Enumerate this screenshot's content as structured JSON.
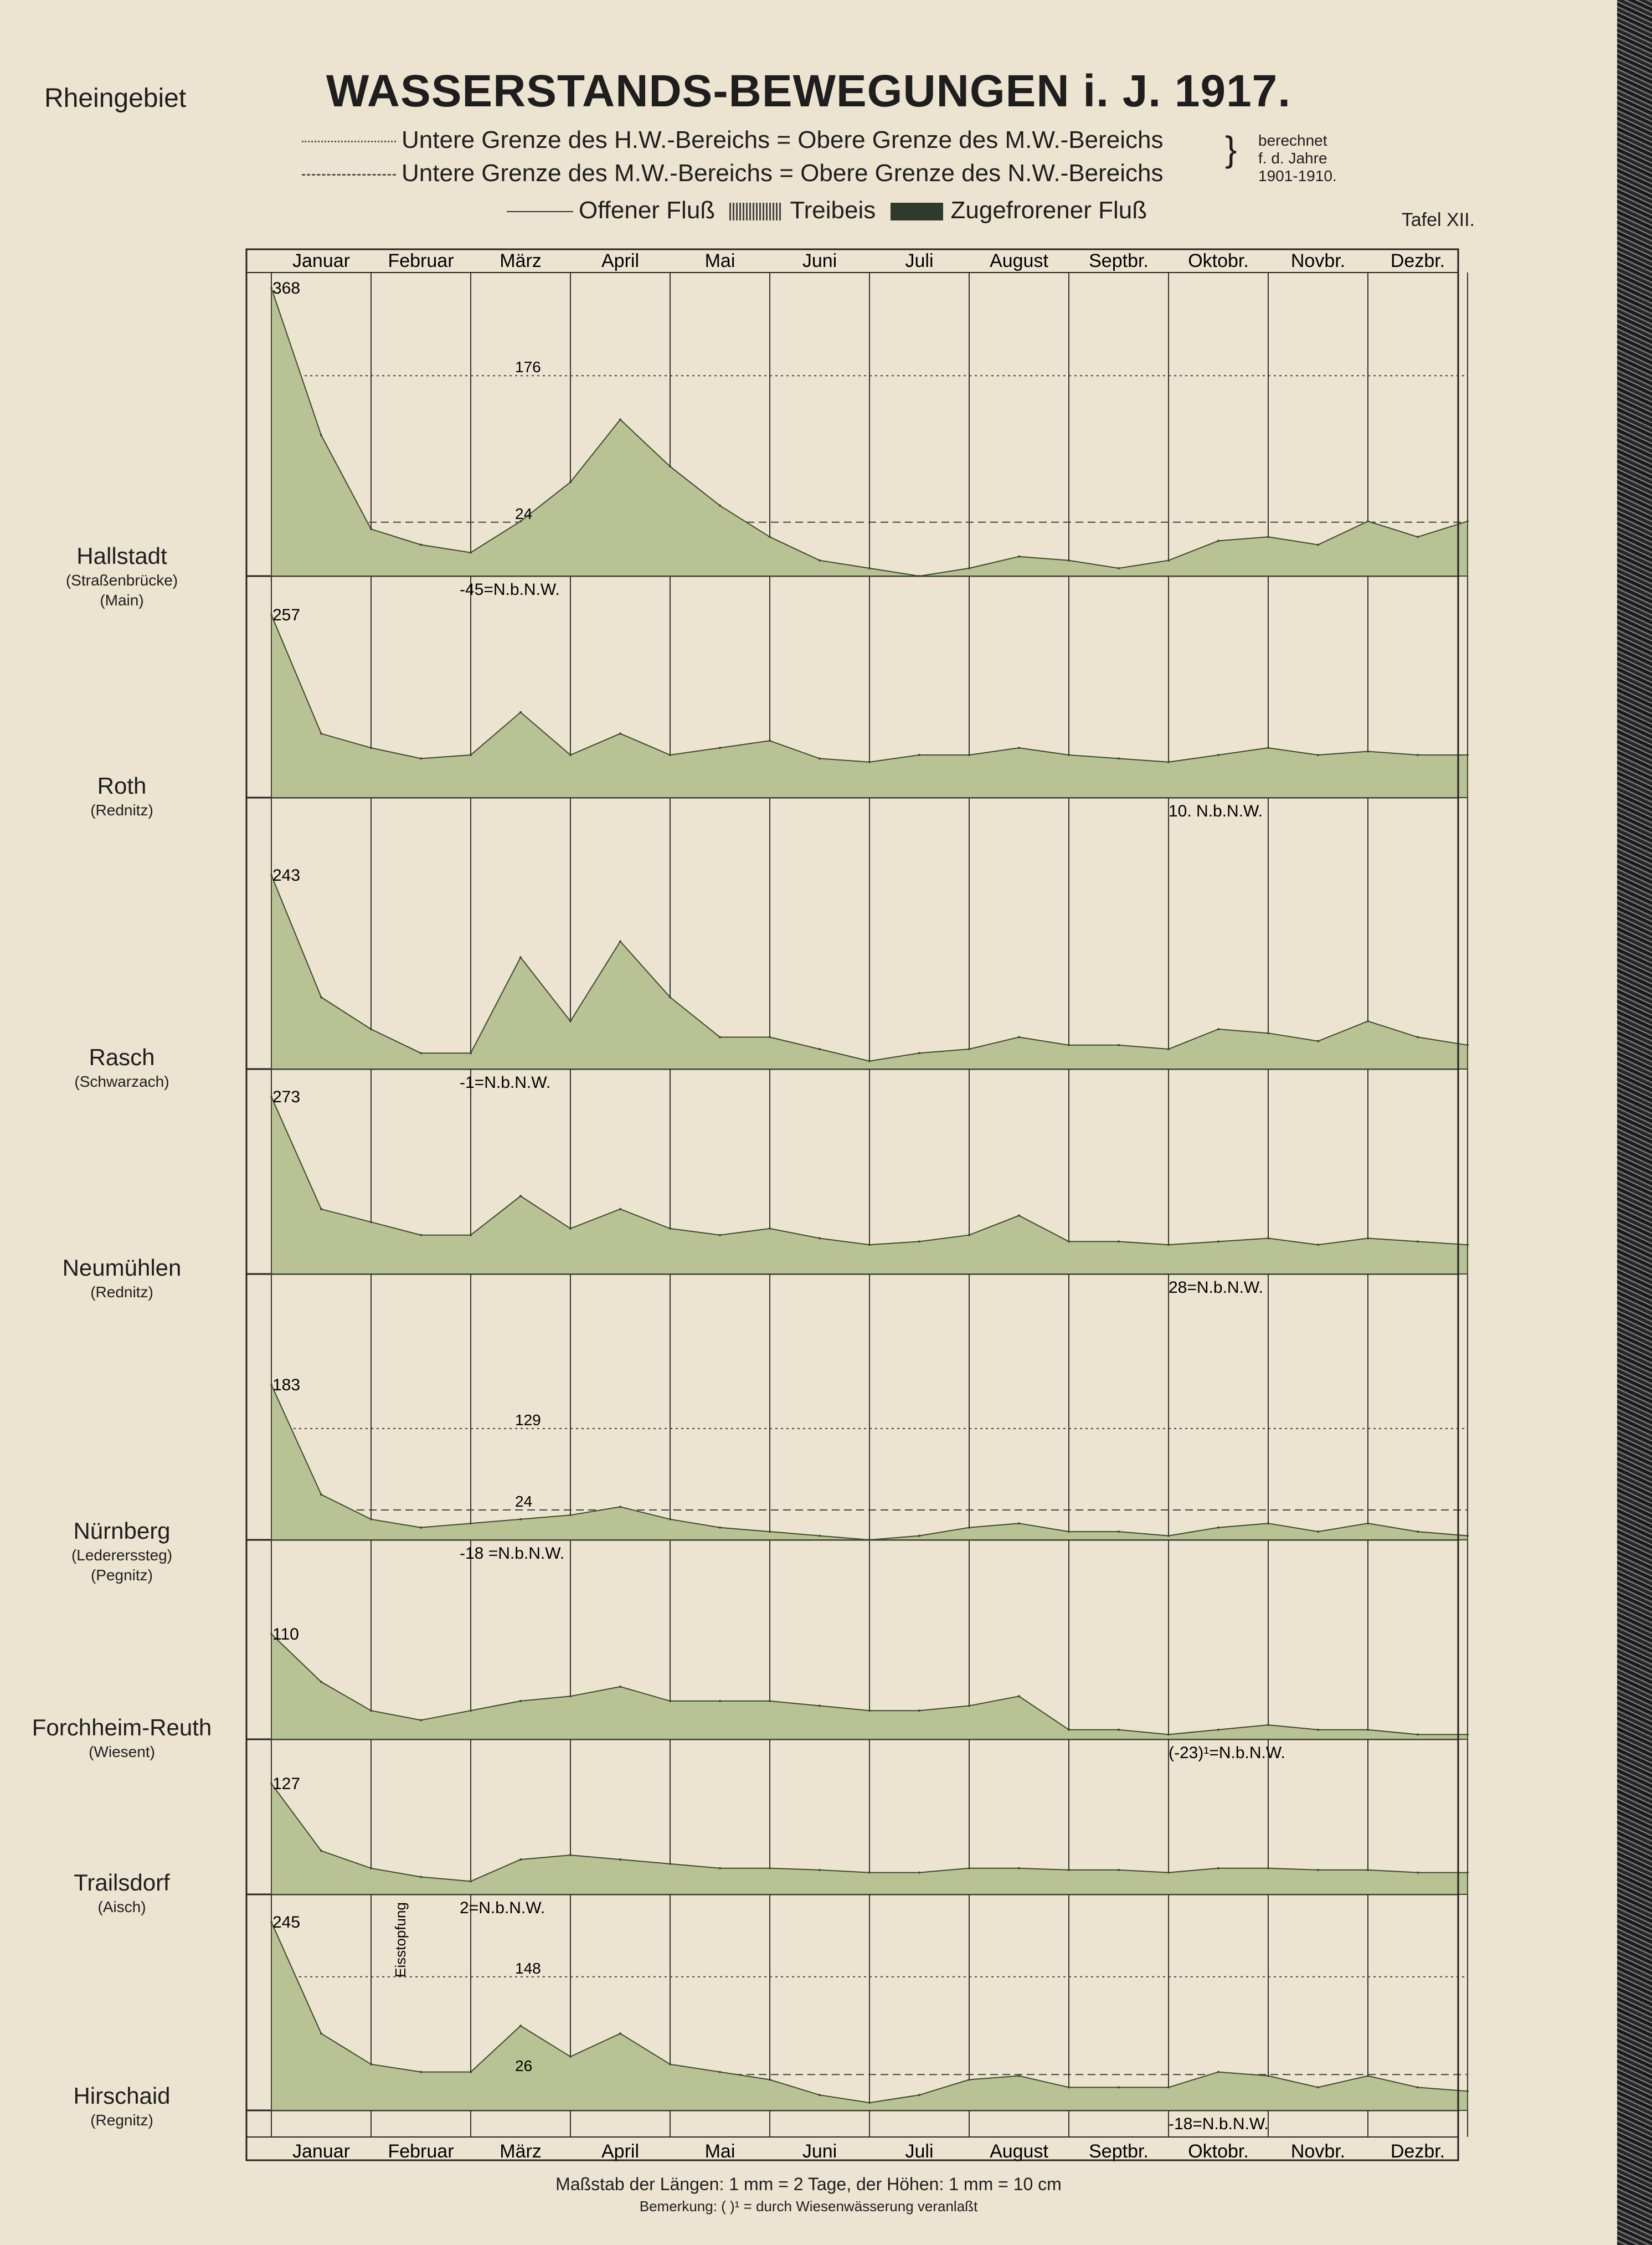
{
  "header": {
    "region": "Rheingebiet",
    "title": "WASSERSTANDS-BEWEGUNGEN i. J. 1917.",
    "legend_line1": "Untere Grenze des H.W.-Bereichs = Obere Grenze des M.W.-Bereichs",
    "legend_line2": "Untere Grenze des M.W.-Bereichs = Obere Grenze des N.W.-Bereichs",
    "calc_note": [
      "berechnet",
      "f. d. Jahre",
      "1901-1910."
    ],
    "open_river": "Offener Fluß",
    "drift_ice": "Treibeis",
    "frozen": "Zugefrorener Fluß",
    "tafel": "Tafel XII."
  },
  "months_top": [
    "Januar",
    "Februar",
    "März",
    "April",
    "Mai",
    "Juni",
    "Juli",
    "August",
    "Septbr.",
    "Oktobr.",
    "Novbr.",
    "Dezbr."
  ],
  "months_bottom": [
    "Januar",
    "Februar",
    "März",
    "April",
    "Mai",
    "Juni",
    "Juli",
    "August",
    "Septbr.",
    "Oktobr.",
    "Novbr.",
    "Dezbr."
  ],
  "stations": [
    {
      "name": "Hallstadt",
      "sub1": "(Straßenbrücke)",
      "sub2": "(Main)",
      "max_label": "368"
    },
    {
      "name": "Roth",
      "sub1": "(Rednitz)",
      "sub2": "",
      "max_label": "257"
    },
    {
      "name": "Rasch",
      "sub1": "(Schwarzach)",
      "sub2": "",
      "max_label": "243"
    },
    {
      "name": "Neumühlen",
      "sub1": "(Rednitz)",
      "sub2": "",
      "max_label": "273"
    },
    {
      "name": "Nürnberg",
      "sub1": "(Ledererssteg)",
      "sub2": "(Pegnitz)",
      "max_label": "183"
    },
    {
      "name": "Forchheim-Reuth",
      "sub1": "(Wiesent)",
      "sub2": "",
      "max_label": "110"
    },
    {
      "name": "Trailsdorf",
      "sub1": "(Aisch)",
      "sub2": "",
      "max_label": "127"
    },
    {
      "name": "Hirschaid",
      "sub1": "(Regnitz)",
      "sub2": "",
      "max_label": "245"
    }
  ],
  "annotations": {
    "hallstadt_hw": "176",
    "hallstadt_mw": "24",
    "hallstadt_nbnw": "-45=N.b.N.W.",
    "roth_nbnw": "10. N.b.N.W.",
    "rasch_nbnw": "-1=N.b.N.W.",
    "neumuehlen_nbnw": "28=N.b.N.W.",
    "nuernberg_hw": "129",
    "nuernberg_mw": "24",
    "nuernberg_nbnw": "-18 =N.b.N.W.",
    "forchheim_nbnw": "(-23)¹=N.b.N.W.",
    "trailsdorf_nbnw": "2=N.b.N.W.",
    "hirschaid_hw": "148",
    "hirschaid_mw": "26",
    "hirschaid_nbnw": "-18=N.b.N.W.",
    "hirschaid_event": "Eisstopfung"
  },
  "footer": {
    "scale": "Maßstab der Längen: 1 mm = 2 Tage, der Höhen: 1 mm = 10 cm",
    "remark": "Bemerkung: ( )¹ = durch Wiesenwässerung veranlaßt"
  },
  "chart_data": {
    "type": "area",
    "title": "WASSERSTANDS-BEWEGUNGEN i. J. 1917.",
    "x": [
      "Jan-1",
      "Jan-16",
      "Feb-1",
      "Feb-15",
      "Mär-1",
      "Mär-16",
      "Apr-1",
      "Apr-16",
      "Mai-1",
      "Mai-16",
      "Jun-1",
      "Jun-16",
      "Jul-1",
      "Jul-16",
      "Aug-1",
      "Aug-16",
      "Sep-1",
      "Sep-16",
      "Okt-1",
      "Okt-16",
      "Nov-1",
      "Nov-16",
      "Dez-1",
      "Dez-16",
      "Dez-31"
    ],
    "xlabel": "",
    "ylabel": "",
    "series": [
      {
        "name": "Hallstadt",
        "values": [
          368,
          180,
          60,
          40,
          30,
          70,
          120,
          200,
          140,
          90,
          50,
          20,
          10,
          0,
          10,
          25,
          20,
          10,
          20,
          45,
          50,
          40,
          70,
          50,
          70
        ]
      },
      {
        "name": "Roth",
        "values": [
          257,
          90,
          70,
          55,
          60,
          120,
          60,
          90,
          60,
          70,
          80,
          55,
          50,
          60,
          60,
          70,
          60,
          55,
          50,
          60,
          70,
          60,
          65,
          60,
          60
        ]
      },
      {
        "name": "Rasch",
        "values": [
          243,
          90,
          50,
          20,
          20,
          140,
          60,
          160,
          90,
          40,
          40,
          25,
          10,
          20,
          25,
          40,
          30,
          30,
          25,
          50,
          45,
          35,
          60,
          40,
          30
        ]
      },
      {
        "name": "Neumühlen",
        "values": [
          273,
          100,
          80,
          60,
          60,
          120,
          70,
          100,
          70,
          60,
          70,
          55,
          45,
          50,
          60,
          90,
          50,
          50,
          45,
          50,
          55,
          45,
          55,
          50,
          45
        ]
      },
      {
        "name": "Nürnberg",
        "values": [
          183,
          50,
          20,
          10,
          15,
          20,
          25,
          35,
          20,
          10,
          5,
          0,
          -5,
          0,
          10,
          15,
          5,
          5,
          0,
          10,
          15,
          5,
          15,
          5,
          0
        ]
      },
      {
        "name": "Forchheim-Reuth",
        "values": [
          110,
          60,
          30,
          20,
          30,
          40,
          45,
          55,
          40,
          40,
          40,
          35,
          30,
          30,
          35,
          45,
          10,
          10,
          5,
          10,
          15,
          10,
          10,
          5,
          5
        ]
      },
      {
        "name": "Trailsdorf",
        "values": [
          127,
          50,
          30,
          20,
          15,
          40,
          45,
          40,
          35,
          30,
          30,
          28,
          25,
          25,
          30,
          30,
          28,
          28,
          25,
          30,
          30,
          28,
          28,
          25,
          25
        ]
      },
      {
        "name": "Hirschaid",
        "values": [
          245,
          100,
          60,
          50,
          50,
          110,
          70,
          100,
          60,
          50,
          40,
          20,
          10,
          20,
          40,
          45,
          30,
          30,
          30,
          50,
          45,
          30,
          45,
          30,
          25
        ]
      }
    ],
    "grid": true
  }
}
